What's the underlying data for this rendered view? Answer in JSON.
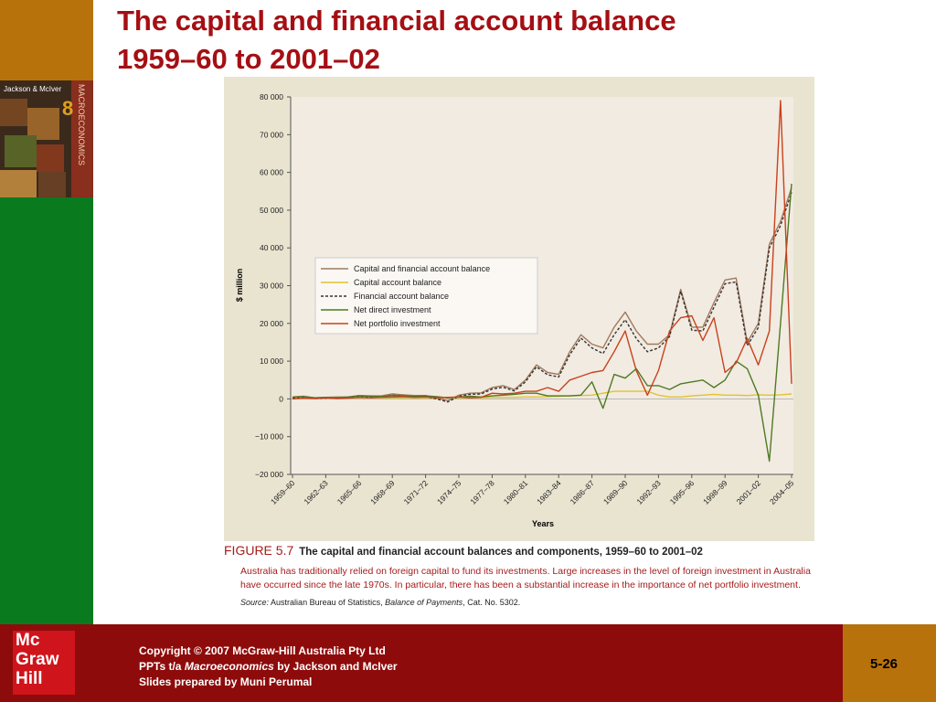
{
  "slide": {
    "title_line1": "The capital and financial account balance",
    "title_line2": "1959–60 to 2001–02",
    "book_authors": "Jackson & McIver",
    "book_title": "MACROECONOMICS",
    "book_edition": "8",
    "figure_number": "FIGURE 5.7",
    "figure_title": "The capital and financial account balances and components, 1959–60 to 2001–02",
    "figure_text": "Australia has traditionally relied on foreign capital to fund its investments. Large increases in the level of foreign investment in Australia have occurred since the late 1970s. In particular, there has been a substantial increase in the importance of net portfolio investment.",
    "source_label": "Source:",
    "source_text": "Australian Bureau of Statistics,",
    "source_title": "Balance of Payments",
    "source_rest": ", Cat. No. 5302.",
    "copyright": "Copyright © 2007 McGraw-Hill Australia Pty Ltd",
    "ppts_pre": "PPTs t/a",
    "ppts_book": "Macroeconomics",
    "ppts_post": "by Jackson and McIver",
    "prepared": "Slides prepared by Muni Perumal",
    "page": "5-26",
    "logo": [
      "Mc",
      "Graw",
      "Hill"
    ]
  },
  "chart_data": {
    "type": "line",
    "categories": [
      "1959–60",
      null,
      null,
      "1962–63",
      null,
      null,
      "1965–66",
      null,
      null,
      "1968–69",
      null,
      null,
      "1971–72",
      null,
      null,
      "1974–75",
      null,
      null,
      "1977–78",
      null,
      null,
      "1980–81",
      null,
      null,
      "1983–84",
      null,
      null,
      "1986–87",
      null,
      null,
      "1989–90",
      null,
      null,
      "1992–93",
      null,
      null,
      "1995–96",
      null,
      null,
      "1998–99",
      null,
      null,
      "2001–02",
      null,
      null,
      "2004–05"
    ],
    "x_label": "Years",
    "y_label": "$ million",
    "ylim": [
      -20000,
      80000
    ],
    "yticks": [
      {
        "value": -20000,
        "label": "−20 000"
      },
      {
        "value": -10000,
        "label": "−10 000"
      },
      0,
      {
        "value": 10000,
        "label": "10 000"
      },
      {
        "value": 20000,
        "label": "20 000"
      },
      {
        "value": 30000,
        "label": "30 000"
      },
      {
        "value": 40000,
        "label": "40 000"
      },
      {
        "value": 50000,
        "label": "50 000"
      },
      {
        "value": 60000,
        "label": "60 000"
      },
      {
        "value": 70000,
        "label": "70 000"
      },
      {
        "value": 80000,
        "label": "80 000"
      }
    ],
    "legend": "upper left",
    "series": [
      {
        "name": "Capital and financial account balance",
        "color": "#a07a5c",
        "dash": false,
        "values": [
          500,
          700,
          300,
          400,
          500,
          500,
          900,
          800,
          800,
          1300,
          1100,
          900,
          900,
          300,
          -500,
          1000,
          1500,
          1600,
          3000,
          3500,
          2500,
          5000,
          9000,
          7000,
          6500,
          12500,
          17000,
          14500,
          13500,
          19000,
          23000,
          18000,
          14500,
          14500,
          17000,
          29000,
          19000,
          19000,
          25500,
          31500,
          32000,
          15000,
          20000,
          41000,
          47000,
          56000
        ]
      },
      {
        "name": "Capital account balance",
        "color": "#e3c32a",
        "dash": false,
        "values": [
          200,
          200,
          200,
          200,
          200,
          200,
          300,
          300,
          300,
          300,
          300,
          300,
          300,
          300,
          300,
          300,
          300,
          300,
          400,
          400,
          400,
          500,
          500,
          600,
          700,
          800,
          900,
          1000,
          1500,
          2000,
          2000,
          2000,
          2000,
          1000,
          500,
          500,
          800,
          1000,
          1200,
          1000,
          1000,
          900,
          1100,
          1000,
          1100,
          1300
        ]
      },
      {
        "name": "Financial account balance",
        "color": "#333333",
        "dash": true,
        "values": [
          300,
          500,
          100,
          200,
          300,
          300,
          600,
          500,
          500,
          1000,
          800,
          600,
          600,
          0,
          -800,
          700,
          1200,
          1300,
          2600,
          3100,
          2100,
          4500,
          8500,
          6400,
          5800,
          11700,
          16100,
          13500,
          12000,
          17000,
          21000,
          16000,
          12500,
          13500,
          16500,
          28500,
          18200,
          18000,
          24300,
          30500,
          31000,
          14100,
          18900,
          40000,
          45900,
          54700
        ]
      },
      {
        "name": "Net direct investment",
        "color": "#4d7a22",
        "dash": false,
        "values": [
          500,
          600,
          300,
          400,
          300,
          500,
          800,
          700,
          600,
          900,
          800,
          700,
          800,
          600,
          300,
          500,
          700,
          500,
          800,
          1000,
          1200,
          1500,
          1500,
          800,
          800,
          800,
          1000,
          4500,
          -2500,
          6500,
          5500,
          8000,
          3500,
          3500,
          2500,
          4000,
          4500,
          5000,
          3000,
          5000,
          10000,
          8000,
          1000,
          -16500,
          20000,
          57000
        ]
      },
      {
        "name": "Net portfolio investment",
        "color": "#c8421c",
        "dash": false,
        "values": [
          0,
          200,
          100,
          300,
          100,
          200,
          400,
          300,
          400,
          500,
          600,
          400,
          500,
          300,
          400,
          500,
          300,
          400,
          1500,
          1300,
          1500,
          2000,
          2000,
          3000,
          2000,
          5000,
          6000,
          7000,
          7500,
          12500,
          18000,
          7500,
          1000,
          7500,
          18000,
          21500,
          22000,
          15500,
          21500,
          7000,
          9500,
          16000,
          9000,
          18000,
          79000,
          4000
        ]
      }
    ]
  }
}
